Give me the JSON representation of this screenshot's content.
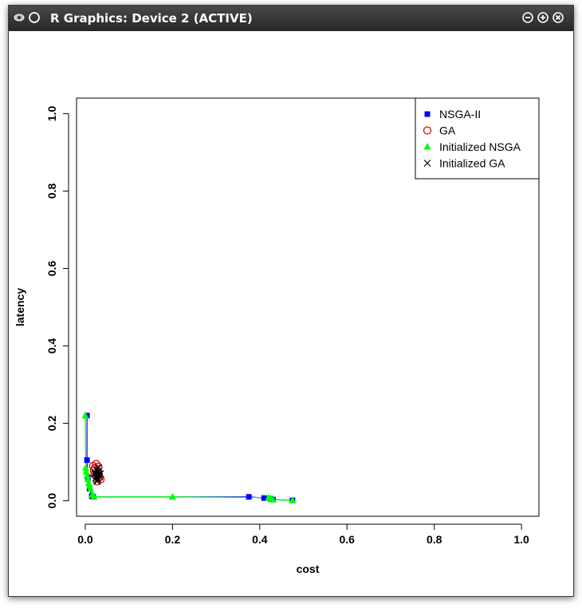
{
  "window": {
    "title": "R Graphics: Device 2 (ACTIVE)",
    "icons": [
      "app-eye-icon",
      "pin-circle-icon",
      "minimize-icon",
      "maximize-icon",
      "close-icon"
    ]
  },
  "chart_data": {
    "type": "scatter",
    "title": "",
    "xlabel": "cost",
    "ylabel": "latency",
    "xlim": [
      -0.02,
      1.04
    ],
    "ylim": [
      -0.04,
      1.04
    ],
    "xticks": [
      0.0,
      0.2,
      0.4,
      0.6,
      0.8,
      1.0
    ],
    "yticks": [
      0.0,
      0.2,
      0.4,
      0.6,
      0.8,
      1.0
    ],
    "tick_labels_x": [
      "0.0",
      "0.2",
      "0.4",
      "0.6",
      "0.8",
      "1.0"
    ],
    "tick_labels_y": [
      "0.0",
      "0.2",
      "0.4",
      "0.6",
      "0.8",
      "1.0"
    ],
    "grid": false,
    "legend_position": "top-right",
    "legend": [
      "NSGA-II",
      "GA",
      "Initialized NSGA",
      "Initialized GA"
    ],
    "series": [
      {
        "name": "NSGA-II",
        "marker": "square",
        "color": "#0000ff",
        "x": [
          0.004,
          0.004,
          0.006,
          0.01,
          0.015,
          0.018,
          0.375,
          0.41,
          0.425,
          0.43,
          0.475
        ],
        "y": [
          0.22,
          0.105,
          0.06,
          0.03,
          0.012,
          0.01,
          0.01,
          0.007,
          0.005,
          0.003,
          0.001
        ]
      },
      {
        "name": "GA",
        "marker": "circle",
        "color": "#cc0000",
        "x": [
          0.018,
          0.022,
          0.025,
          0.028,
          0.03,
          0.024,
          0.032,
          0.02,
          0.027,
          0.035,
          0.021,
          0.03
        ],
        "y": [
          0.09,
          0.085,
          0.095,
          0.07,
          0.075,
          0.065,
          0.06,
          0.078,
          0.05,
          0.055,
          0.068,
          0.088
        ]
      },
      {
        "name": "Initialized NSGA",
        "marker": "triangle",
        "color": "#00ff00",
        "x": [
          0.0,
          0.001,
          0.002,
          0.004,
          0.006,
          0.008,
          0.01,
          0.012,
          0.016,
          0.02,
          0.2,
          0.42,
          0.425,
          0.43,
          0.475
        ],
        "y": [
          0.22,
          0.085,
          0.075,
          0.065,
          0.055,
          0.045,
          0.038,
          0.03,
          0.015,
          0.01,
          0.01,
          0.008,
          0.006,
          0.003,
          0.001
        ]
      },
      {
        "name": "Initialized GA",
        "marker": "cross",
        "color": "#000000",
        "x": [
          0.022,
          0.025,
          0.027,
          0.029,
          0.031,
          0.024,
          0.026,
          0.033,
          0.028,
          0.023,
          0.03,
          0.035,
          0.027,
          0.032
        ],
        "y": [
          0.07,
          0.065,
          0.06,
          0.075,
          0.068,
          0.058,
          0.08,
          0.062,
          0.055,
          0.072,
          0.085,
          0.07,
          0.05,
          0.078
        ]
      }
    ]
  }
}
